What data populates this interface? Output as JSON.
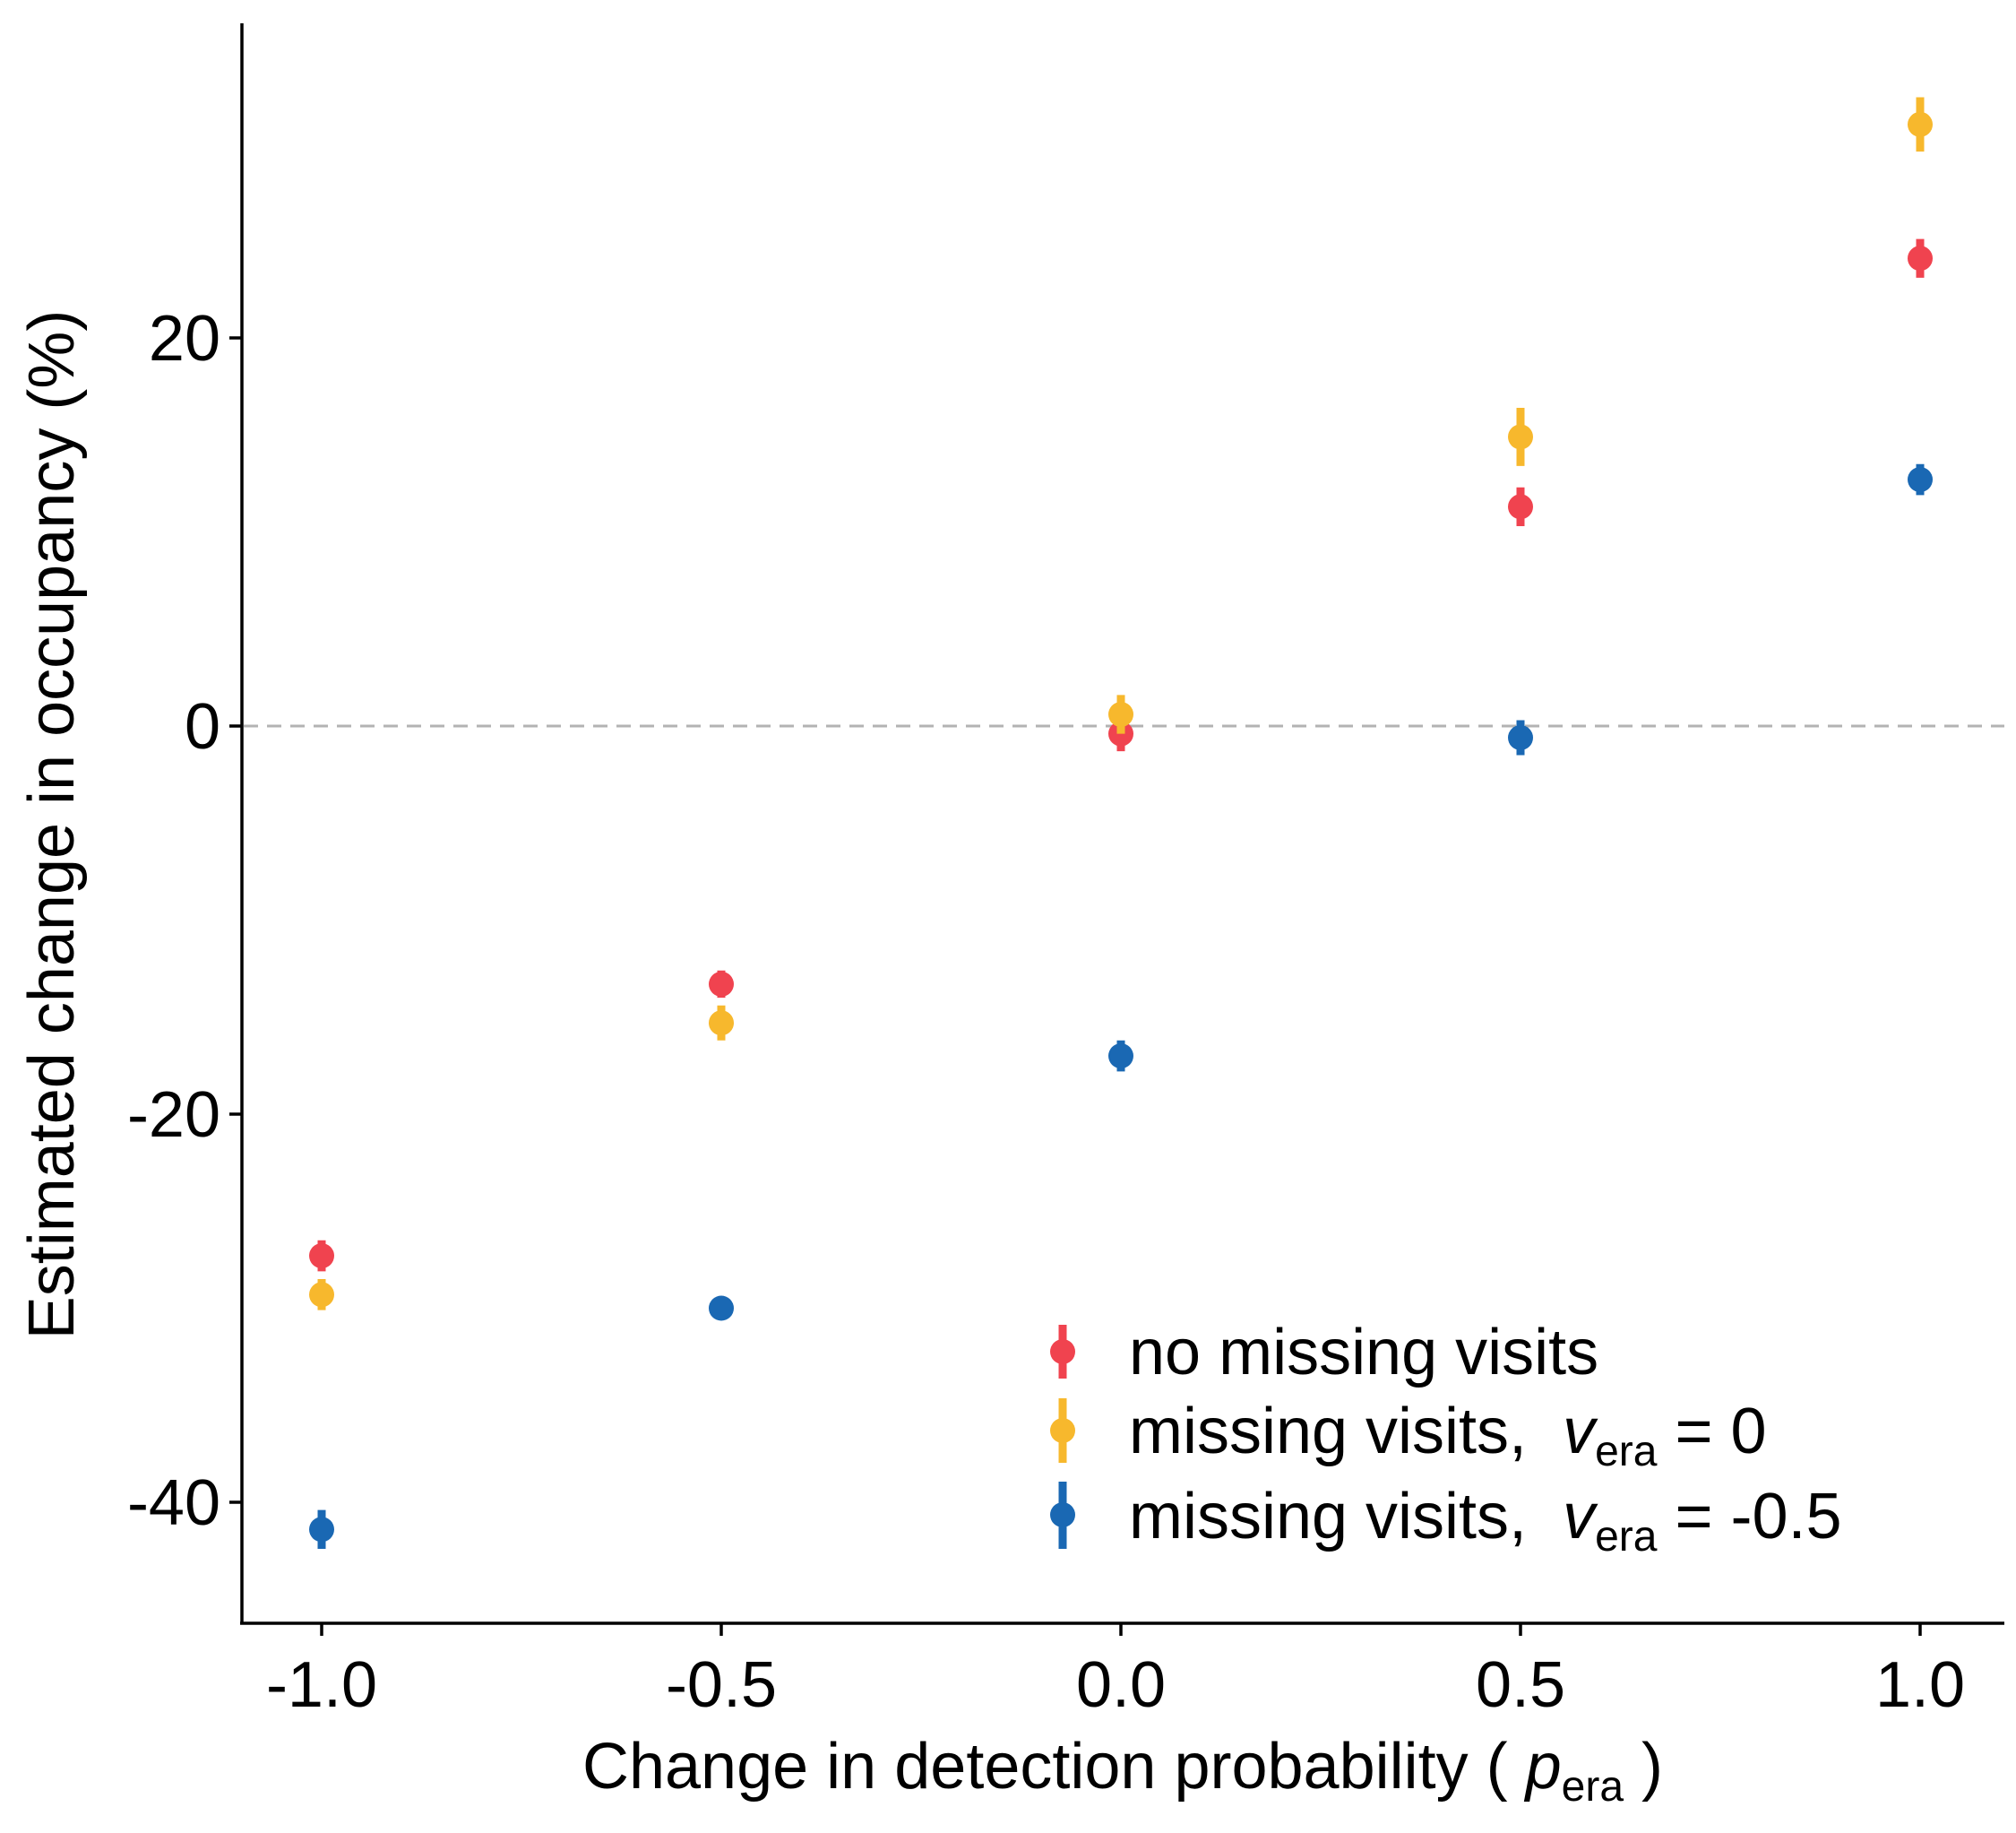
{
  "chart_data": {
    "type": "scatter",
    "xlabel": {
      "text": "Change in detection probability ( ",
      "var": "p",
      "sub": "era",
      "close": " )"
    },
    "ylabel": "Estimated change in occupancy (%)",
    "xlim": [
      -1.2,
      1.2
    ],
    "ylim": [
      -46,
      36
    ],
    "x_ticks": [
      -1.0,
      -0.5,
      0.0,
      0.5,
      1.0
    ],
    "x_tick_labels": [
      "-1.0",
      "-0.5",
      "0.0",
      "0.5",
      "1.0"
    ],
    "y_ticks": [
      -40,
      -20,
      0,
      20
    ],
    "y_tick_labels": [
      "-40",
      "-20",
      "0",
      "20"
    ],
    "reference_line": {
      "y": 0,
      "style": "dashed",
      "color": "#b3b3b3"
    },
    "legend_position": "bottom-right",
    "series": [
      {
        "name": "no missing visits",
        "color": "#f0434f",
        "x": [
          -1.0,
          -0.5,
          0.0,
          0.5,
          1.0
        ],
        "y": [
          -27.3,
          -13.3,
          -0.4,
          11.3,
          24.1
        ],
        "err": [
          0.8,
          0.7,
          0.9,
          1.0,
          1.0
        ]
      },
      {
        "name": "missing visits,  ",
        "name_var": "v",
        "name_sub": "era",
        "name_tail": " = 0",
        "color": "#f7b82d",
        "x": [
          -1.0,
          -0.5,
          0.0,
          0.5,
          1.0
        ],
        "y": [
          -29.3,
          -15.3,
          0.6,
          14.9,
          31.0
        ],
        "err": [
          0.8,
          0.9,
          1.0,
          1.5,
          1.4
        ]
      },
      {
        "name": "missing visits,  ",
        "name_var": "v",
        "name_sub": "era",
        "name_tail": " = -0.5",
        "color": "#1a68b3",
        "x": [
          -1.0,
          -0.5,
          0.0,
          0.5,
          1.0
        ],
        "y": [
          -41.4,
          -30.0,
          -17.0,
          -0.6,
          12.7
        ],
        "err": [
          1.0,
          0.6,
          0.8,
          0.9,
          0.8
        ]
      }
    ]
  }
}
